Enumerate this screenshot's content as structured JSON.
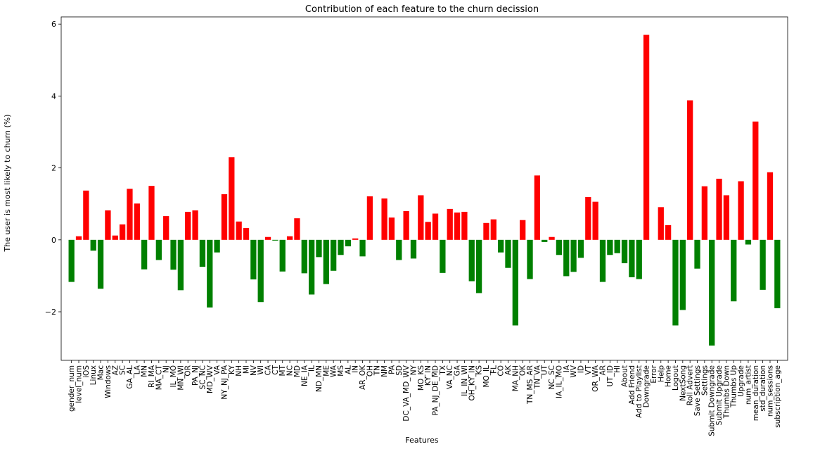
{
  "chart_data": {
    "type": "bar",
    "title": "Contribution of each feature to the churn decission",
    "xlabel": "Features",
    "ylabel": "The user is most likely to churn (%)",
    "ylim": [
      -3.35,
      6.2
    ],
    "yticks": [
      -2,
      0,
      2,
      4,
      6
    ],
    "grid": false,
    "colors": {
      "positive": "#ff0000",
      "negative": "#008000"
    },
    "categories": [
      "gender_num",
      "level_num",
      "iOS",
      "Linux",
      "Mac",
      "Windows",
      "AZ",
      "SC",
      "GA_AL",
      "LA",
      "MN",
      "RI_MA",
      "MA_CT",
      "NJ",
      "IL_MO",
      "MN_WI",
      "OR",
      "PA_NJ",
      "SC_NC",
      "MD_WV",
      "VA",
      "NY_NJ_PA",
      "KY",
      "NH",
      "MI",
      "NV",
      "WI",
      "CA",
      "CT",
      "MT",
      "NC",
      "MD",
      "NE_IA",
      "IL",
      "ND_MN",
      "ME",
      "WA",
      "MS",
      "AL",
      "IN",
      "AR_OK",
      "OH",
      "TN",
      "NM",
      "PA",
      "SD",
      "DC_VA_MD_WV",
      "NY",
      "MO_KS",
      "KY_IN",
      "PA_NJ_DE_MD",
      "TX",
      "VA_NC",
      "GA",
      "IL_IN_WI",
      "OH_KY_IN",
      "KS",
      "MO_IL",
      "FL",
      "CO",
      "AK",
      "MA_NH",
      "OK",
      "TN_MS_AR",
      "TN_VA",
      "UT",
      "NC_SC",
      "IA_IL_MO",
      "IA",
      "WV",
      "ID",
      "VT",
      "OR_WA",
      "AR",
      "UT_ID",
      "HI",
      "About",
      "Add Friend",
      "Add to Playlist",
      "Downgrade",
      "Error",
      "Help",
      "Home",
      "Logout",
      "NextSong",
      "Roll Advert",
      "Save Settings",
      "Settings",
      "Submit Downgrade",
      "Submit Upgrade",
      "Thumbs Down",
      "Thumbs Up",
      "Upgrade",
      "num_artist",
      "mean_duration",
      "std_duration",
      "num_sessions",
      "subscription_age"
    ],
    "values": [
      -1.17,
      0.1,
      1.37,
      -0.3,
      -1.36,
      0.82,
      0.12,
      0.43,
      1.42,
      1.01,
      -0.82,
      1.5,
      -0.56,
      0.66,
      -0.83,
      -1.4,
      0.78,
      0.82,
      -0.75,
      -1.88,
      -0.35,
      1.27,
      2.3,
      0.51,
      0.33,
      -1.1,
      -1.73,
      0.08,
      -0.02,
      -0.88,
      0.1,
      0.6,
      -0.93,
      -1.52,
      -0.48,
      -1.23,
      -0.86,
      -0.42,
      -0.18,
      0.04,
      -0.46,
      1.21,
      0.0,
      1.15,
      0.62,
      -0.56,
      0.8,
      -0.52,
      1.24,
      0.5,
      0.73,
      -0.92,
      0.86,
      0.76,
      0.78,
      -1.15,
      -1.48,
      0.47,
      0.57,
      -0.35,
      -0.78,
      -2.38,
      0.55,
      -1.09,
      1.79,
      -0.06,
      0.08,
      -0.42,
      -1.01,
      -0.89,
      -0.5,
      1.19,
      1.06,
      -1.17,
      -0.42,
      -0.37,
      -0.65,
      -1.04,
      -1.09,
      5.7,
      0.0,
      0.91,
      0.41,
      -2.38,
      -1.95,
      3.88,
      -0.8,
      1.49,
      -2.94,
      1.7,
      1.24,
      -1.71,
      1.63,
      -0.13,
      3.29,
      -1.39,
      1.88,
      -1.9
    ]
  }
}
